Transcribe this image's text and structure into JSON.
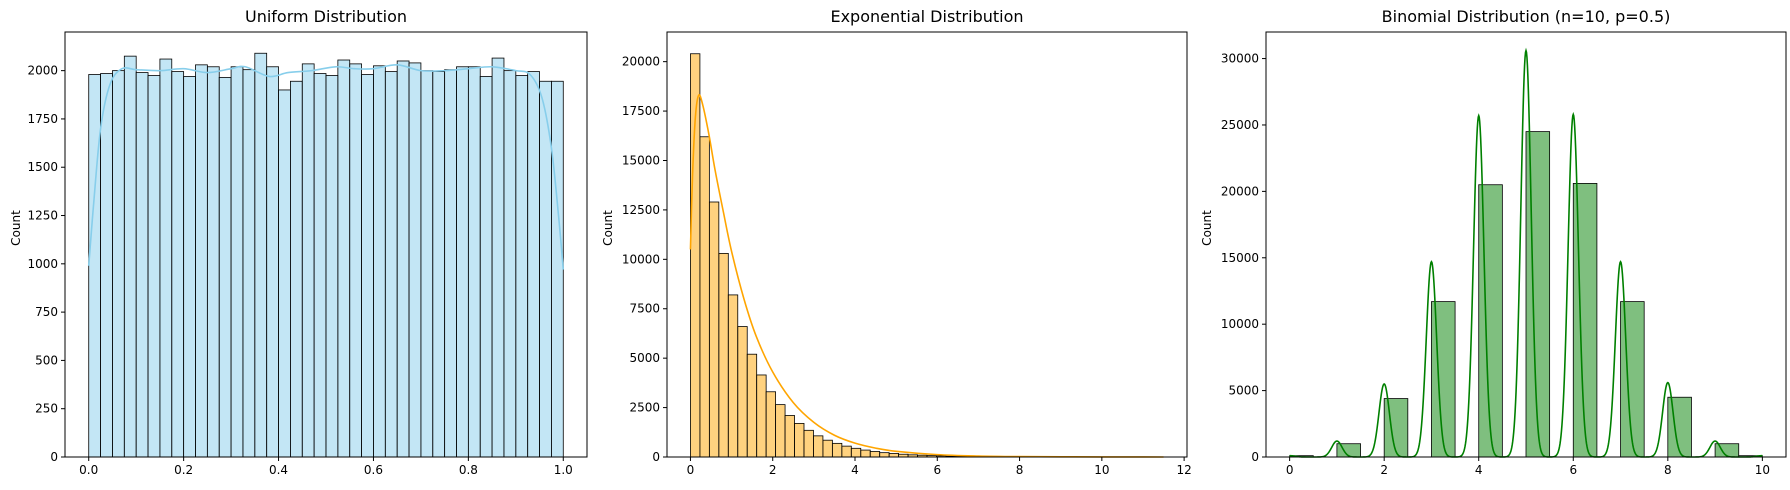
{
  "chart_data": [
    {
      "type": "histogram",
      "title": "Uniform Distribution",
      "xlabel": "",
      "ylabel": "Count",
      "xlim": [
        -0.05,
        1.05
      ],
      "ylim": [
        0,
        2200
      ],
      "xticks": [
        0.0,
        0.2,
        0.4,
        0.6,
        0.8,
        1.0
      ],
      "xtick_labels": [
        "0.0",
        "0.2",
        "0.4",
        "0.6",
        "0.8",
        "1.0"
      ],
      "yticks": [
        0,
        250,
        500,
        750,
        1000,
        1250,
        1500,
        1750,
        2000
      ],
      "bin_range": [
        0,
        1
      ],
      "counts": [
        1980,
        1985,
        2000,
        2075,
        1990,
        1975,
        2060,
        1995,
        1970,
        2030,
        2020,
        1965,
        2020,
        2005,
        2090,
        2020,
        1900,
        1945,
        2035,
        1985,
        1975,
        2055,
        2035,
        1980,
        2025,
        1995,
        2050,
        2040,
        2000,
        1995,
        2005,
        2020,
        2020,
        1970,
        2065,
        2000,
        1975,
        1995,
        1945,
        1945
      ],
      "fill_color": "#87ceeb",
      "line_color": "#87ceeb",
      "kde": [
        [
          0.0,
          990
        ],
        [
          0.01,
          1300
        ],
        [
          0.025,
          1700
        ],
        [
          0.045,
          1930
        ],
        [
          0.07,
          2010
        ],
        [
          0.1,
          2005
        ],
        [
          0.15,
          2000
        ],
        [
          0.2,
          2010
        ],
        [
          0.25,
          1990
        ],
        [
          0.3,
          2010
        ],
        [
          0.33,
          2020
        ],
        [
          0.38,
          1970
        ],
        [
          0.42,
          1990
        ],
        [
          0.47,
          2000
        ],
        [
          0.52,
          2020
        ],
        [
          0.56,
          2010
        ],
        [
          0.6,
          2010
        ],
        [
          0.65,
          2030
        ],
        [
          0.7,
          2000
        ],
        [
          0.75,
          2000
        ],
        [
          0.8,
          2010
        ],
        [
          0.85,
          2020
        ],
        [
          0.9,
          2000
        ],
        [
          0.93,
          1980
        ],
        [
          0.955,
          1860
        ],
        [
          0.975,
          1600
        ],
        [
          0.99,
          1250
        ],
        [
          1.0,
          970
        ]
      ]
    },
    {
      "type": "histogram",
      "title": "Exponential Distribution",
      "xlabel": "",
      "ylabel": "Count",
      "xlim": [
        -0.57,
        12.07
      ],
      "ylim": [
        0,
        21500
      ],
      "xticks": [
        0,
        2,
        4,
        6,
        8,
        10,
        12
      ],
      "xtick_labels": [
        "0",
        "2",
        "4",
        "6",
        "8",
        "10",
        "12"
      ],
      "yticks": [
        0,
        2500,
        5000,
        7500,
        10000,
        12500,
        15000,
        17500,
        20000
      ],
      "bin_range": [
        0,
        11.5
      ],
      "counts": [
        20400,
        16200,
        12900,
        10300,
        8200,
        6600,
        5200,
        4150,
        3300,
        2650,
        2100,
        1700,
        1350,
        1070,
        850,
        690,
        550,
        440,
        350,
        280,
        220,
        180,
        140,
        110,
        90,
        70,
        55,
        45,
        35,
        28,
        22,
        18,
        14,
        11,
        9,
        7,
        6,
        5,
        4,
        3,
        3,
        2,
        2,
        2,
        1,
        1,
        1,
        1,
        1,
        1
      ],
      "fill_color": "#ffa500",
      "line_color": "#ffa500",
      "kde": [
        [
          0.0,
          10500
        ],
        [
          0.05,
          14200
        ],
        [
          0.12,
          17200
        ],
        [
          0.2,
          18300
        ],
        [
          0.3,
          17800
        ],
        [
          0.45,
          16300
        ],
        [
          0.6,
          14500
        ],
        [
          0.8,
          12400
        ],
        [
          1.0,
          10400
        ],
        [
          1.3,
          8000
        ],
        [
          1.6,
          6100
        ],
        [
          2.0,
          4300
        ],
        [
          2.5,
          2750
        ],
        [
          3.0,
          1750
        ],
        [
          3.5,
          1100
        ],
        [
          4.0,
          700
        ],
        [
          4.5,
          450
        ],
        [
          5.0,
          290
        ],
        [
          6.0,
          120
        ],
        [
          7.0,
          50
        ],
        [
          8.0,
          20
        ],
        [
          9.0,
          10
        ],
        [
          10.0,
          5
        ],
        [
          11.5,
          0
        ]
      ]
    },
    {
      "type": "histogram",
      "title": "Binomial Distribution (n=10, p=0.5)",
      "xlabel": "",
      "ylabel": "Count",
      "xlim": [
        -0.5,
        10.5
      ],
      "ylim": [
        0,
        32000
      ],
      "xticks": [
        0,
        2,
        4,
        6,
        8,
        10
      ],
      "xtick_labels": [
        "0",
        "2",
        "4",
        "6",
        "8",
        "10"
      ],
      "yticks": [
        0,
        5000,
        10000,
        15000,
        20000,
        25000,
        30000
      ],
      "bin_range": [
        0,
        10
      ],
      "bins": 20,
      "counts": [
        100,
        0,
        1000,
        0,
        4400,
        0,
        11700,
        0,
        20500,
        0,
        24500,
        0,
        20600,
        0,
        11700,
        0,
        4500,
        0,
        1000,
        100
      ],
      "fill_color": "#008000",
      "line_color": "#008000",
      "kde_peaks": [
        [
          0,
          100
        ],
        [
          1,
          1200
        ],
        [
          2,
          5500
        ],
        [
          3,
          14700
        ],
        [
          4,
          25700
        ],
        [
          5,
          30600
        ],
        [
          6,
          25800
        ],
        [
          7,
          14700
        ],
        [
          8,
          5600
        ],
        [
          9,
          1200
        ],
        [
          10,
          100
        ]
      ],
      "kde_sigma": 0.11
    }
  ]
}
